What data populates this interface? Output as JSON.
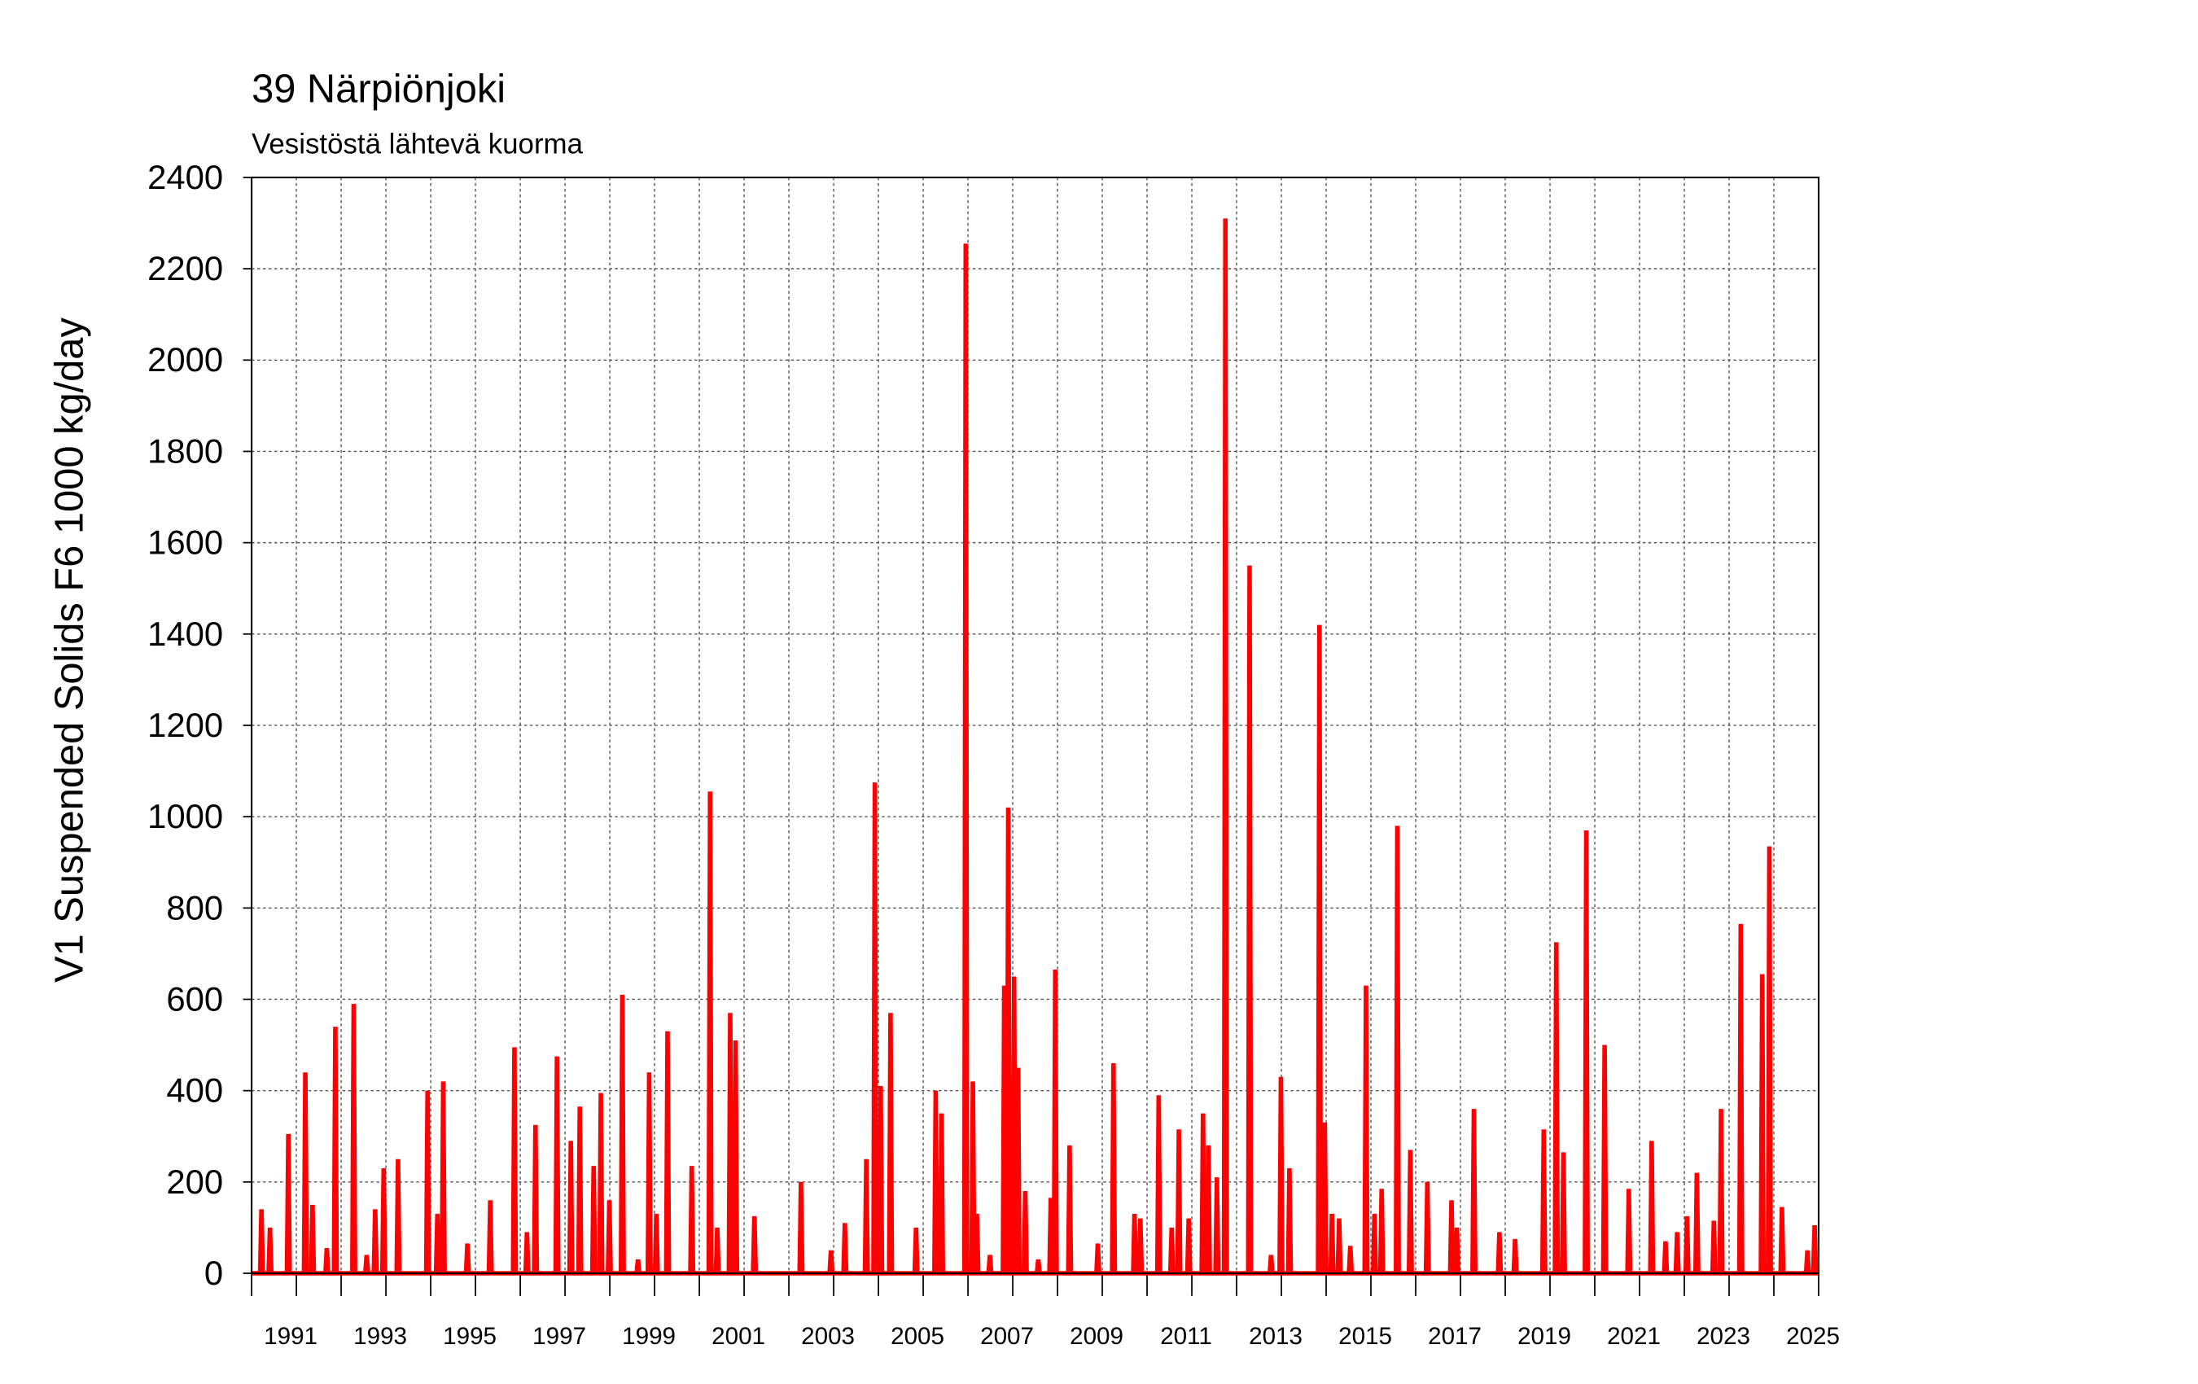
{
  "chart_data": {
    "type": "line",
    "title": "39 Närpiönjoki",
    "subtitle": "Vesistöstä lähtevä kuorma",
    "y_label": "V1 Suspended Solids F6 1000 kg/day",
    "color": "#ff0000",
    "grid": true,
    "xlim": [
      1990,
      2025
    ],
    "ylim": [
      0,
      2400
    ],
    "yticks": [
      0,
      200,
      400,
      600,
      800,
      1000,
      1200,
      1400,
      1600,
      1800,
      2000,
      2200,
      2400
    ],
    "xticks": [
      1991,
      1993,
      1995,
      1997,
      1999,
      2001,
      2003,
      2005,
      2007,
      2009,
      2011,
      2013,
      2015,
      2017,
      2019,
      2021,
      2023,
      2025
    ],
    "xminor": [
      1990,
      1992,
      1994,
      1996,
      1998,
      2000,
      2002,
      2004,
      2006,
      2008,
      2010,
      2012,
      2014,
      2016,
      2018,
      2020,
      2022,
      2024
    ],
    "x": [
      1990,
      1990.19,
      1990.22,
      1990.25,
      1990.38,
      1990.41,
      1990.44,
      1990.79,
      1990.82,
      1990.85,
      1991.17,
      1991.2,
      1991.23,
      1991.33,
      1991.36,
      1991.39,
      1991.65,
      1991.68,
      1991.71,
      1991.84,
      1991.87,
      1991.9,
      1992.25,
      1992.28,
      1992.31,
      1992.54,
      1992.57,
      1992.6,
      1992.73,
      1992.76,
      1992.79,
      1992.92,
      1992.95,
      1992.98,
      1993.24,
      1993.27,
      1993.3,
      1993.9,
      1993.93,
      1993.96,
      1994.12,
      1994.15,
      1994.18,
      1994.25,
      1994.28,
      1994.31,
      1994.79,
      1994.82,
      1994.85,
      1995.3,
      1995.33,
      1995.36,
      1995.84,
      1995.87,
      1995.9,
      1996.12,
      1996.15,
      1996.18,
      1996.31,
      1996.34,
      1996.37,
      1996.79,
      1996.82,
      1996.85,
      1997.1,
      1997.13,
      1997.16,
      1997.3,
      1997.33,
      1997.36,
      1997.61,
      1997.64,
      1997.67,
      1997.77,
      1997.8,
      1997.83,
      1997.96,
      1997.99,
      1998.02,
      1998.25,
      1998.28,
      1998.31,
      1998.6,
      1998.63,
      1998.66,
      1998.85,
      1998.88,
      1998.91,
      1999.01,
      1999.04,
      1999.07,
      1999.26,
      1999.29,
      1999.32,
      1999.8,
      1999.83,
      1999.86,
      2000.21,
      2000.24,
      2000.27,
      2000.37,
      2000.4,
      2000.43,
      2000.66,
      2000.69,
      2000.72,
      2000.78,
      2000.81,
      2000.84,
      2001.2,
      2001.23,
      2001.26,
      2002.24,
      2002.27,
      2002.3,
      2002.91,
      2002.94,
      2002.97,
      2003.22,
      2003.25,
      2003.28,
      2003.7,
      2003.73,
      2003.76,
      2003.89,
      2003.92,
      2003.95,
      2004.02,
      2004.05,
      2004.08,
      2004.24,
      2004.27,
      2004.3,
      2004.81,
      2004.84,
      2004.87,
      2005.25,
      2005.28,
      2005.31,
      2005.38,
      2005.41,
      2005.44,
      2005.92,
      2005.95,
      2005.98,
      2006.08,
      2006.11,
      2006.14,
      2006.17,
      2006.2,
      2006.23,
      2006.46,
      2006.49,
      2006.52,
      2006.78,
      2006.81,
      2006.84,
      2006.87,
      2006.9,
      2006.93,
      2007,
      2007.03,
      2007.06,
      2007.09,
      2007.12,
      2007.15,
      2007.25,
      2007.28,
      2007.31,
      2007.54,
      2007.57,
      2007.6,
      2007.82,
      2007.85,
      2007.88,
      2007.92,
      2007.95,
      2007.98,
      2008.24,
      2008.27,
      2008.3,
      2008.87,
      2008.9,
      2008.93,
      2009.22,
      2009.25,
      2009.28,
      2009.69,
      2009.72,
      2009.75,
      2009.82,
      2009.85,
      2009.88,
      2010.23,
      2010.26,
      2010.29,
      2010.52,
      2010.55,
      2010.58,
      2010.68,
      2010.71,
      2010.74,
      2010.9,
      2010.93,
      2010.96,
      2011.22,
      2011.25,
      2011.28,
      2011.34,
      2011.37,
      2011.4,
      2011.53,
      2011.56,
      2011.59,
      2011.72,
      2011.75,
      2011.78,
      2012.26,
      2012.29,
      2012.32,
      2012.74,
      2012.77,
      2012.8,
      2012.96,
      2012.99,
      2013.02,
      2013.15,
      2013.18,
      2013.21,
      2013.82,
      2013.85,
      2013.88,
      2013.94,
      2013.97,
      2014,
      2014.1,
      2014.13,
      2014.16,
      2014.26,
      2014.29,
      2014.32,
      2014.51,
      2014.54,
      2014.57,
      2014.86,
      2014.89,
      2014.92,
      2015.05,
      2015.08,
      2015.11,
      2015.21,
      2015.24,
      2015.27,
      2015.56,
      2015.59,
      2015.62,
      2015.85,
      2015.88,
      2015.91,
      2016.23,
      2016.26,
      2016.29,
      2016.77,
      2016.8,
      2016.83,
      2016.89,
      2016.92,
      2016.95,
      2017.27,
      2017.3,
      2017.33,
      2017.84,
      2017.87,
      2017.9,
      2018.19,
      2018.22,
      2018.25,
      2018.83,
      2018.86,
      2018.89,
      2019.11,
      2019.14,
      2019.17,
      2019.27,
      2019.3,
      2019.33,
      2019.78,
      2019.81,
      2019.84,
      2020.19,
      2020.22,
      2020.25,
      2020.73,
      2020.76,
      2020.79,
      2021.24,
      2021.27,
      2021.3,
      2021.55,
      2021.58,
      2021.61,
      2021.81,
      2021.84,
      2021.87,
      2022.03,
      2022.06,
      2022.09,
      2022.25,
      2022.28,
      2022.31,
      2022.63,
      2022.66,
      2022.69,
      2022.79,
      2022.82,
      2022.85,
      2023.23,
      2023.26,
      2023.29,
      2023.71,
      2023.74,
      2023.77,
      2023.87,
      2023.9,
      2023.93,
      2024.15,
      2024.18,
      2024.21,
      2024.72,
      2024.75,
      2024.78,
      2024.88,
      2024.91,
      2024.94,
      2025
    ],
    "values": [
      0,
      0,
      140,
      0,
      0,
      100,
      0,
      0,
      305,
      0,
      0,
      440,
      0,
      0,
      150,
      0,
      0,
      55,
      0,
      0,
      540,
      0,
      0,
      590,
      0,
      0,
      40,
      0,
      0,
      140,
      0,
      0,
      230,
      0,
      0,
      250,
      0,
      0,
      400,
      0,
      0,
      130,
      0,
      0,
      420,
      0,
      0,
      65,
      0,
      0,
      160,
      0,
      0,
      495,
      0,
      0,
      90,
      0,
      0,
      325,
      0,
      0,
      475,
      0,
      0,
      290,
      0,
      0,
      365,
      0,
      0,
      235,
      0,
      0,
      395,
      0,
      0,
      160,
      0,
      0,
      610,
      0,
      0,
      30,
      0,
      0,
      440,
      0,
      0,
      130,
      0,
      0,
      530,
      0,
      0,
      235,
      0,
      0,
      1055,
      0,
      0,
      100,
      0,
      0,
      570,
      0,
      0,
      510,
      0,
      0,
      125,
      0,
      0,
      200,
      0,
      0,
      50,
      0,
      0,
      110,
      0,
      0,
      250,
      0,
      0,
      1075,
      0,
      0,
      410,
      0,
      0,
      570,
      0,
      0,
      100,
      0,
      0,
      400,
      0,
      0,
      350,
      0,
      0,
      2255,
      0,
      0,
      420,
      0,
      0,
      130,
      0,
      0,
      40,
      0,
      0,
      630,
      0,
      0,
      1020,
      0,
      0,
      650,
      0,
      0,
      450,
      0,
      0,
      180,
      0,
      0,
      30,
      0,
      0,
      165,
      0,
      0,
      665,
      0,
      0,
      280,
      0,
      0,
      65,
      0,
      0,
      460,
      0,
      0,
      130,
      0,
      0,
      120,
      0,
      0,
      390,
      0,
      0,
      100,
      0,
      0,
      315,
      0,
      0,
      120,
      0,
      0,
      350,
      0,
      0,
      280,
      0,
      0,
      210,
      0,
      0,
      2310,
      0,
      0,
      1550,
      0,
      0,
      40,
      0,
      0,
      430,
      0,
      0,
      230,
      0,
      0,
      1420,
      0,
      0,
      330,
      0,
      0,
      130,
      0,
      0,
      120,
      0,
      0,
      60,
      0,
      0,
      630,
      0,
      0,
      130,
      0,
      0,
      185,
      0,
      0,
      980,
      0,
      0,
      270,
      0,
      0,
      200,
      0,
      0,
      160,
      0,
      0,
      100,
      0,
      0,
      360,
      0,
      0,
      90,
      0,
      0,
      75,
      0,
      0,
      315,
      0,
      0,
      725,
      0,
      0,
      265,
      0,
      0,
      970,
      0,
      0,
      500,
      0,
      0,
      185,
      0,
      0,
      290,
      0,
      0,
      70,
      0,
      0,
      90,
      0,
      0,
      125,
      0,
      0,
      220,
      0,
      0,
      115,
      0,
      0,
      360,
      0,
      0,
      765,
      0,
      0,
      655,
      0,
      0,
      935,
      0,
      0,
      145,
      0,
      0,
      50,
      0,
      0,
      105,
      0,
      0
    ]
  }
}
